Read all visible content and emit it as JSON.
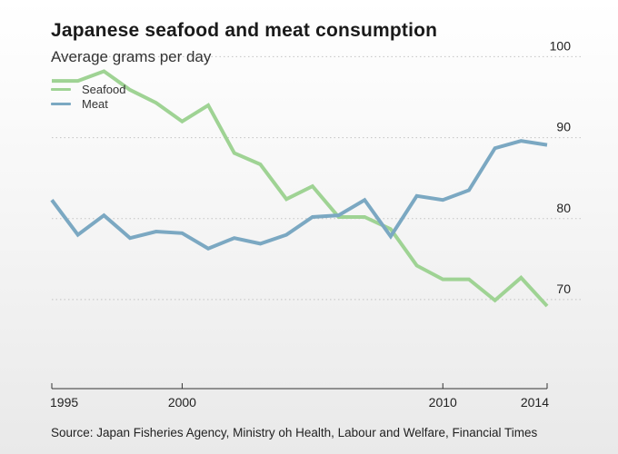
{
  "chart_data": {
    "type": "line",
    "title": "Japanese seafood and meat consumption",
    "subtitle": "Average grams per day",
    "xlabel": "",
    "ylabel": "",
    "x": [
      1995,
      1996,
      1997,
      1998,
      1999,
      2000,
      2001,
      2002,
      2003,
      2004,
      2005,
      2006,
      2007,
      2008,
      2009,
      2010,
      2011,
      2012,
      2013,
      2014
    ],
    "series": [
      {
        "name": "Seafood",
        "color": "#9fd394",
        "values": [
          97.0,
          97.0,
          98.2,
          95.9,
          94.3,
          92.0,
          94.0,
          88.1,
          86.7,
          82.4,
          84.0,
          80.2,
          80.2,
          78.7,
          74.2,
          72.5,
          72.5,
          69.9,
          72.7,
          69.2
        ]
      },
      {
        "name": "Meat",
        "color": "#7ba8c2",
        "values": [
          82.3,
          78.0,
          80.4,
          77.6,
          78.4,
          78.2,
          76.3,
          77.6,
          76.9,
          78.0,
          80.2,
          80.4,
          82.3,
          77.8,
          82.8,
          82.3,
          83.5,
          88.7,
          89.6,
          89.1
        ]
      }
    ],
    "xlim": [
      1995,
      2014
    ],
    "ylim": [
      59,
      107
    ],
    "y_ticks": [
      70,
      80,
      90,
      100
    ],
    "x_tick_values": [
      1995,
      2000,
      2010,
      2014
    ],
    "x_tick_labels": [
      "1995",
      "2000",
      "2010",
      "2014"
    ],
    "y_tick_labels": [
      "70",
      "80",
      "90",
      "100"
    ],
    "grid": true,
    "legend_position": "top-left"
  },
  "source": "Source: Japan Fisheries Agency, Ministry oh Health, Labour and Welfare, Financial Times",
  "colors": {
    "seafood": "#9fd394",
    "meat": "#7ba8c2",
    "grid": "#c4c4c4",
    "axis": "#333333"
  }
}
